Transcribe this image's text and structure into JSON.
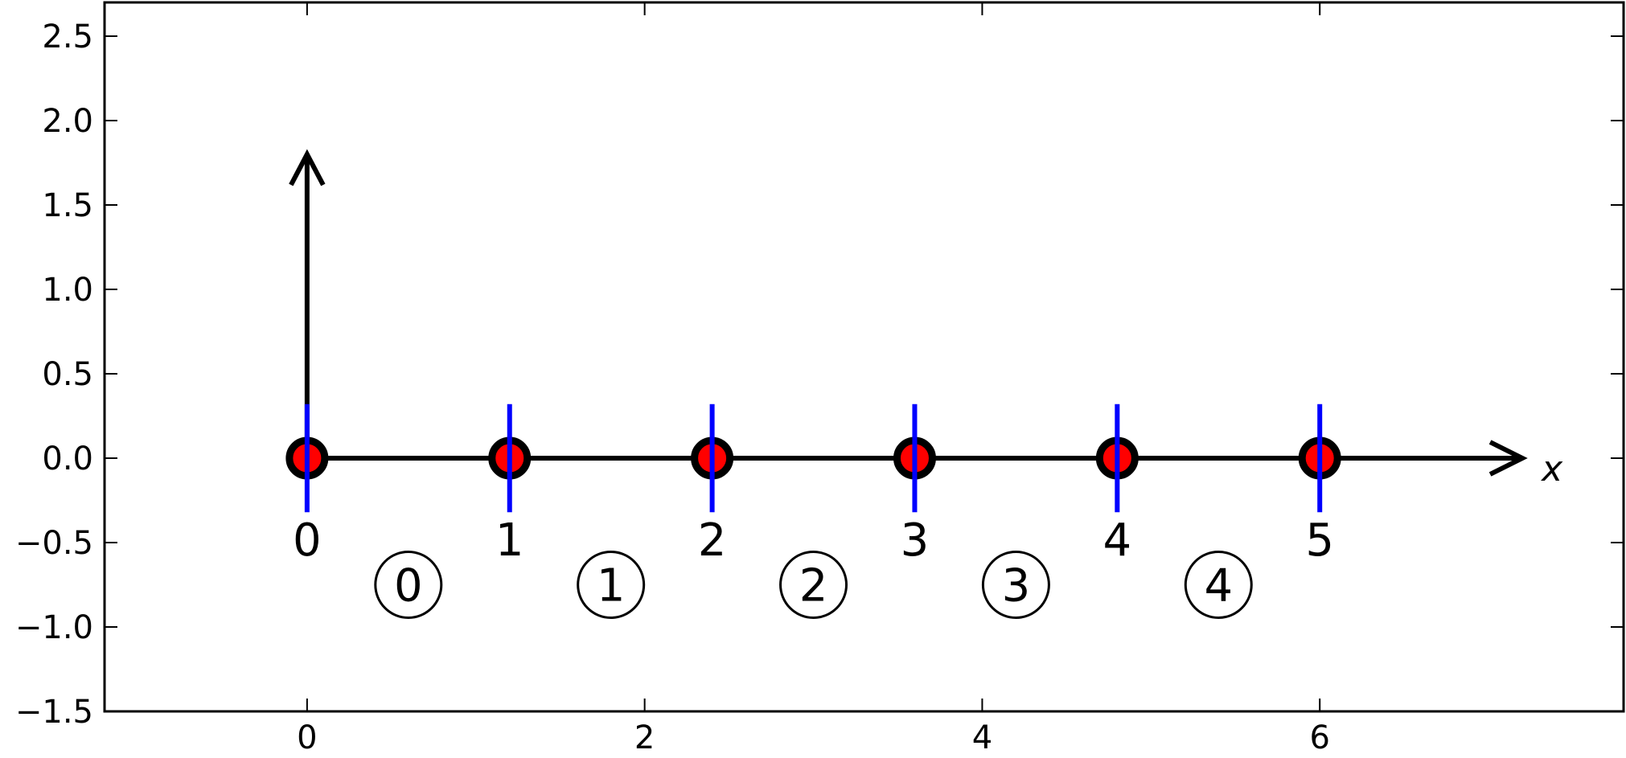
{
  "chart_data": {
    "type": "scatter",
    "title": "",
    "xlabel": "",
    "ylabel": "",
    "xlim": [
      -1.2,
      7.8
    ],
    "ylim": [
      -1.5,
      2.7
    ],
    "grid": false,
    "x_ticks": [
      0,
      2,
      4,
      6
    ],
    "x_tick_labels": [
      "0",
      "2",
      "4",
      "6"
    ],
    "y_ticks": [
      2.5,
      2.0,
      1.5,
      1.0,
      0.5,
      0.0,
      -0.5,
      -1.0,
      -1.5
    ],
    "y_tick_labels": [
      "2.5",
      "2.0",
      "1.5",
      "1.0",
      "0.5",
      "0.0",
      "−0.5",
      "−1.0",
      "−1.5"
    ],
    "nodes": {
      "x": [
        0,
        1.2,
        2.4,
        3.6,
        4.8,
        6.0
      ],
      "y": [
        0,
        0,
        0,
        0,
        0,
        0
      ],
      "labels": [
        "0",
        "1",
        "2",
        "3",
        "4",
        "5"
      ],
      "fill_color": "#ff0000",
      "edge_color": "#000000"
    },
    "node_markers": {
      "x": [
        0,
        1.2,
        2.4,
        3.6,
        4.8,
        6.0
      ],
      "y_range": [
        -0.32,
        0.32
      ],
      "color": "#0000ff"
    },
    "elements": {
      "x": [
        0.6,
        1.8,
        3.0,
        4.2,
        5.4
      ],
      "y": [
        -0.75,
        -0.75,
        -0.75,
        -0.75,
        -0.75
      ],
      "labels": [
        "0",
        "1",
        "2",
        "3",
        "4"
      ]
    },
    "x_axis_arrow": {
      "from": [
        0,
        0
      ],
      "to": [
        7.2,
        0
      ],
      "label": "x"
    },
    "y_axis_arrow": {
      "from": [
        0,
        0
      ],
      "to": [
        0,
        1.8
      ]
    },
    "colors": {
      "axis": "#000000",
      "node_fill": "#ff0000",
      "marker": "#0000ff"
    }
  }
}
